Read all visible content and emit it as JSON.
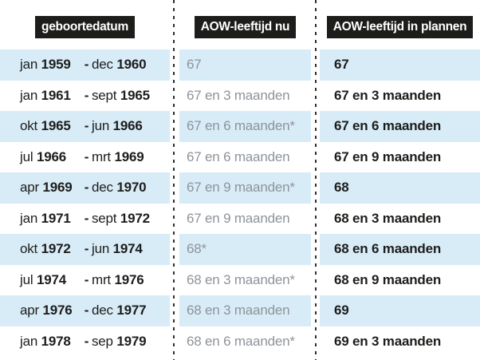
{
  "colors": {
    "row_highlight": "#d8ecf8",
    "badge_background": "#1d1d1b",
    "badge_text": "#ffffff",
    "muted_value_text": "#8e9399",
    "dark_text": "#1d1d1b",
    "dashed_divider": "#2d2d2d"
  },
  "chart_data": {
    "type": "table",
    "columns": [
      "geboortedatum",
      "AOW-leeftijd nu",
      "AOW-leeftijd in plannen"
    ],
    "separator": "-",
    "footnote_marker": "*",
    "rows": [
      {
        "from": "jan",
        "from_year": "1959",
        "to": "dec",
        "to_year": "1960",
        "now": "67",
        "plan": "67"
      },
      {
        "from": "jan",
        "from_year": "1961",
        "to": "sept",
        "to_year": "1965",
        "now": "67 en 3 maanden",
        "plan": "67 en 3 maanden"
      },
      {
        "from": "okt",
        "from_year": "1965",
        "to": "jun",
        "to_year": "1966",
        "now": "67 en 6 maanden*",
        "plan": "67 en 6 maanden"
      },
      {
        "from": "jul",
        "from_year": "1966",
        "to": "mrt",
        "to_year": "1969",
        "now": "67 en 6 maanden",
        "plan": "67 en 9 maanden"
      },
      {
        "from": "apr",
        "from_year": "1969",
        "to": "dec",
        "to_year": "1970",
        "now": "67 en 9 maanden*",
        "plan": "68"
      },
      {
        "from": "jan",
        "from_year": "1971",
        "to": "sept",
        "to_year": "1972",
        "now": "67 en 9 maanden",
        "plan": "68 en 3 maanden"
      },
      {
        "from": "okt",
        "from_year": "1972",
        "to": "jun",
        "to_year": "1974",
        "now": "68*",
        "plan": "68 en 6 maanden"
      },
      {
        "from": "jul",
        "from_year": "1974",
        "to": "mrt",
        "to_year": "1976",
        "now": "68 en 3 maanden*",
        "plan": "68 en 9 maanden"
      },
      {
        "from": "apr",
        "from_year": "1976",
        "to": "dec",
        "to_year": "1977",
        "now": "68 en 3 maanden",
        "plan": "69"
      },
      {
        "from": "jan",
        "from_year": "1978",
        "to": "sep",
        "to_year": "1979",
        "now": "68 en 6 maanden*",
        "plan": "69 en 3 maanden"
      }
    ]
  }
}
